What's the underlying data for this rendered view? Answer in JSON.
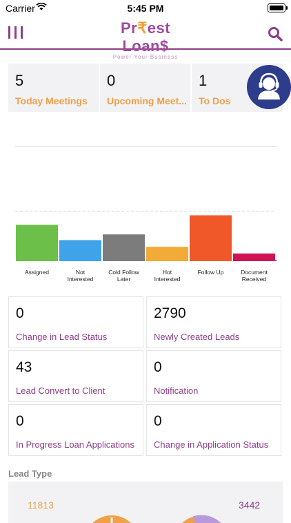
{
  "status_bar": {
    "carrier": "Carrier",
    "time": "5:45 PM"
  },
  "header": {
    "logo_text_left": "Pr",
    "logo_rupee": "₹",
    "logo_text_right": "est Loan$",
    "tagline": "Power Your Business"
  },
  "summary_tiles": [
    {
      "value": "5",
      "label": "Today Meetings"
    },
    {
      "value": "0",
      "label": "Upcoming Meet..."
    },
    {
      "value": "1",
      "label": "To Dos"
    }
  ],
  "chart_data": {
    "type": "bar",
    "categories": [
      "Assigned",
      "Not Interested",
      "Cold Follow Later",
      "Hot Interested",
      "Follow Up",
      "Document Received"
    ],
    "values": [
      38,
      22,
      28,
      15,
      48,
      8
    ],
    "colors": [
      "#6cc04a",
      "#3ea3e8",
      "#7c7c7c",
      "#f2ab36",
      "#f0582a",
      "#cf1455"
    ],
    "ylim": [
      0,
      120
    ],
    "grid": true
  },
  "stat_cards": [
    {
      "value": "0",
      "label": "Change in Lead Status"
    },
    {
      "value": "2790",
      "label": "Newly Created Leads"
    },
    {
      "value": "43",
      "label": "Lead Convert to Client"
    },
    {
      "value": "0",
      "label": "Notification"
    },
    {
      "value": "0",
      "label": "In Progress Loan Applications"
    },
    {
      "value": "0",
      "label": "Change in Application Status"
    }
  ],
  "lead_type": {
    "title": "Lead Type",
    "left_value": "11813",
    "right_value": "3442"
  },
  "colors": {
    "accent": "#8e3d8a",
    "orange": "#f0a048",
    "support": "#2e3c8c"
  }
}
